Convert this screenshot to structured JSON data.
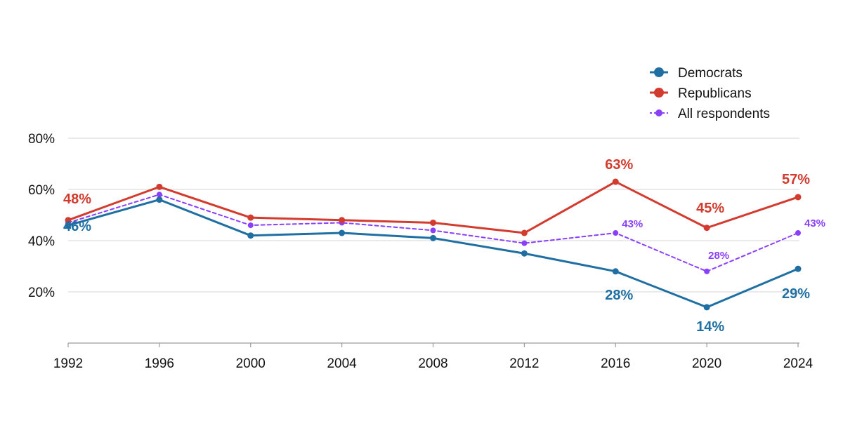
{
  "chart_data": {
    "type": "line",
    "x": [
      "1992",
      "1996",
      "2000",
      "2004",
      "2008",
      "2012",
      "2016",
      "2020",
      "2024"
    ],
    "yticks": [
      "80%",
      "60%",
      "40%",
      "20%"
    ],
    "ylim": [
      0,
      80
    ],
    "grid": true,
    "legend_position": "top-right",
    "series": [
      {
        "name": "Democrats",
        "color": "#1f6fa3",
        "style": "solid",
        "values": [
          46,
          56,
          42,
          43,
          41,
          35,
          28,
          14,
          29
        ]
      },
      {
        "name": "Republicans",
        "color": "#d23b2e",
        "style": "solid",
        "values": [
          48,
          61,
          49,
          48,
          47,
          43,
          63,
          45,
          57
        ]
      },
      {
        "name": "All respondents",
        "color": "#8a3ffc",
        "style": "dashed",
        "values": [
          47,
          58,
          46,
          47,
          44,
          39,
          43,
          28,
          43
        ]
      }
    ],
    "annotations": [
      {
        "series": 1,
        "index": 0,
        "text": "48%"
      },
      {
        "series": 0,
        "index": 0,
        "text": "46%"
      },
      {
        "series": 1,
        "index": 6,
        "text": "63%"
      },
      {
        "series": 2,
        "index": 6,
        "text": "43%"
      },
      {
        "series": 0,
        "index": 6,
        "text": "28%"
      },
      {
        "series": 1,
        "index": 7,
        "text": "45%"
      },
      {
        "series": 2,
        "index": 7,
        "text": "28%"
      },
      {
        "series": 0,
        "index": 7,
        "text": "14%"
      },
      {
        "series": 1,
        "index": 8,
        "text": "57%"
      },
      {
        "series": 2,
        "index": 8,
        "text": "43%"
      },
      {
        "series": 0,
        "index": 8,
        "text": "29%"
      }
    ]
  }
}
